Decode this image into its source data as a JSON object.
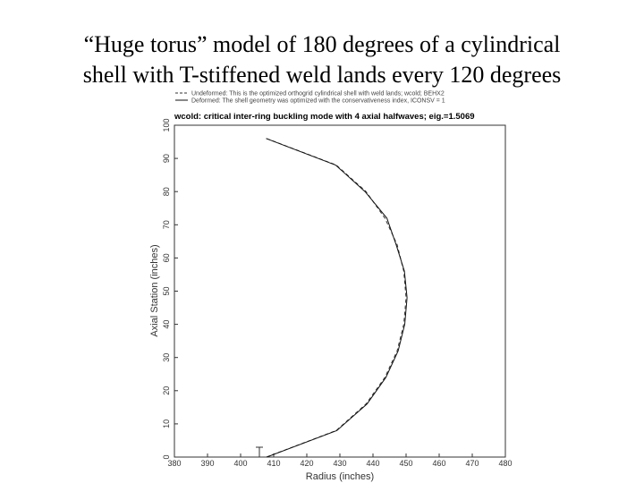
{
  "slide_title": [
    "“Huge torus” model of 180 degrees of a cylindrical",
    "shell with T-stiffened weld lands every 120 degrees"
  ],
  "chart_data": {
    "type": "line",
    "title": "wcold: critical inter-ring buckling mode with 4 axial halfwaves; eig.=1.5069",
    "x_label": "Radius (inches)",
    "y_label": "Axial Station (inches)",
    "xlim": [
      380,
      480
    ],
    "xticks": [
      380,
      390,
      400,
      410,
      420,
      430,
      440,
      450,
      460,
      470,
      480
    ],
    "ylim": [
      0,
      100
    ],
    "yticks": [
      0,
      10,
      20,
      30,
      40,
      50,
      60,
      70,
      80,
      90,
      100
    ],
    "series": [
      {
        "name": "Undeformed: This is the optimized orthogrid cylindrical shell with weld lands; wcold; BEHX2",
        "color": "#333333",
        "dash": true,
        "x": [
          407.8,
          428.9,
          437.9,
          443.6,
          447.3,
          449.3,
          450.0,
          449.3,
          447.3,
          443.6,
          437.9,
          428.9,
          407.8
        ],
        "values": [
          0,
          8,
          16,
          24,
          32,
          40,
          48,
          56,
          64,
          72,
          80,
          88,
          96
        ]
      },
      {
        "name": "Deformed: The shell geometry was optimized with the conservativeness index, ICONSV = 1",
        "color": "#111111",
        "dash": false,
        "x": [
          407.9,
          429.1,
          438.2,
          443.9,
          447.6,
          449.6,
          450.3,
          449.5,
          447.0,
          444.2,
          437.6,
          428.7,
          407.7
        ],
        "values": [
          0,
          8,
          16,
          24,
          32,
          40,
          48,
          56,
          64,
          72,
          80,
          88,
          96
        ]
      }
    ]
  }
}
